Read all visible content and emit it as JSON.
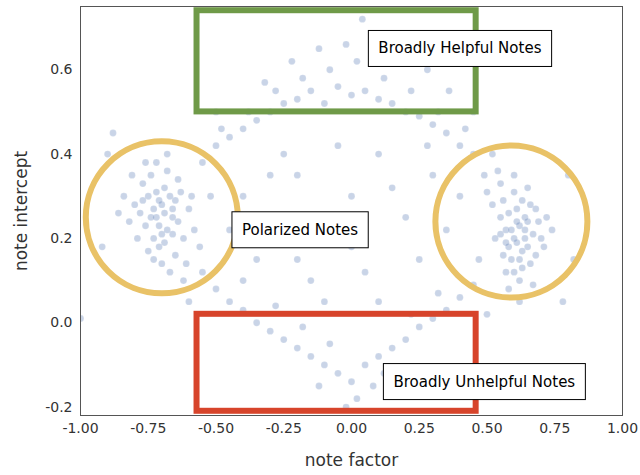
{
  "chart_data": {
    "type": "scatter",
    "color": "#4c72b0",
    "x_label": "note factor",
    "y_label": "note intercept",
    "xlim": [
      -1.0,
      1.0
    ],
    "ylim": [
      -0.22,
      0.75
    ],
    "xticks": [
      {
        "value": -1.0,
        "label": "-1.00"
      },
      -0.75,
      {
        "value": -0.5,
        "label": "-0.50"
      },
      -0.25,
      {
        "value": 0,
        "label": "0.00"
      },
      0.25,
      {
        "value": 0.5,
        "label": "0.50"
      },
      0.75,
      {
        "value": 1.0,
        "label": "1.00"
      }
    ],
    "yticks": [
      -0.2,
      {
        "value": 0,
        "label": "0.0"
      },
      0.2,
      0.4,
      0.6
    ],
    "grid": false,
    "points": [
      [
        -0.72,
        0.25
      ],
      [
        -0.7,
        0.28
      ],
      [
        -0.68,
        0.22
      ],
      [
        -0.75,
        0.3
      ],
      [
        -0.66,
        0.27
      ],
      [
        -0.73,
        0.2
      ],
      [
        -0.78,
        0.26
      ],
      [
        -0.69,
        0.32
      ],
      [
        -0.64,
        0.24
      ],
      [
        -0.71,
        0.18
      ],
      [
        -0.76,
        0.23
      ],
      [
        -0.67,
        0.3
      ],
      [
        -0.8,
        0.28
      ],
      [
        -0.74,
        0.35
      ],
      [
        -0.62,
        0.2
      ],
      [
        -0.7,
        0.14
      ],
      [
        -0.65,
        0.16
      ],
      [
        -0.77,
        0.33
      ],
      [
        -0.82,
        0.24
      ],
      [
        -0.6,
        0.27
      ],
      [
        -0.68,
        0.36
      ],
      [
        -0.73,
        0.27
      ],
      [
        -0.71,
        0.23
      ],
      [
        -0.66,
        0.21
      ],
      [
        -0.79,
        0.2
      ],
      [
        -0.63,
        0.31
      ],
      [
        -0.58,
        0.22
      ],
      [
        -0.84,
        0.3
      ],
      [
        -0.72,
        0.38
      ],
      [
        -0.69,
        0.26
      ],
      [
        -0.75,
        0.17
      ],
      [
        -0.61,
        0.14
      ],
      [
        -0.67,
        0.12
      ],
      [
        -0.74,
        0.25
      ],
      [
        -0.7,
        0.21
      ],
      [
        -0.77,
        0.29
      ],
      [
        -0.64,
        0.34
      ],
      [
        -0.59,
        0.3
      ],
      [
        -0.81,
        0.35
      ],
      [
        -0.68,
        0.4
      ],
      [
        -0.56,
        0.18
      ],
      [
        -0.72,
        0.31
      ],
      [
        -0.65,
        0.29
      ],
      [
        -0.76,
        0.38
      ],
      [
        -0.62,
        0.1
      ],
      [
        -0.69,
        0.19
      ],
      [
        -0.73,
        0.15
      ],
      [
        -0.86,
        0.26
      ],
      [
        -0.66,
        0.25
      ],
      [
        -0.71,
        0.29
      ],
      [
        0.6,
        0.2
      ],
      [
        0.62,
        0.23
      ],
      [
        0.58,
        0.18
      ],
      [
        0.64,
        0.25
      ],
      [
        0.57,
        0.22
      ],
      [
        0.65,
        0.18
      ],
      [
        0.61,
        0.27
      ],
      [
        0.55,
        0.25
      ],
      [
        0.67,
        0.21
      ],
      [
        0.59,
        0.15
      ],
      [
        0.63,
        0.13
      ],
      [
        0.56,
        0.29
      ],
      [
        0.69,
        0.24
      ],
      [
        0.6,
        0.31
      ],
      [
        0.66,
        0.28
      ],
      [
        0.53,
        0.2
      ],
      [
        0.62,
        0.1
      ],
      [
        0.68,
        0.16
      ],
      [
        0.58,
        0.26
      ],
      [
        0.7,
        0.2
      ],
      [
        0.61,
        0.19
      ],
      [
        0.64,
        0.22
      ],
      [
        0.55,
        0.33
      ],
      [
        0.52,
        0.28
      ],
      [
        0.65,
        0.32
      ],
      [
        0.57,
        0.12
      ],
      [
        0.63,
        0.17
      ],
      [
        0.72,
        0.25
      ],
      [
        0.59,
        0.22
      ],
      [
        0.66,
        0.14
      ],
      [
        0.54,
        0.36
      ],
      [
        0.61,
        0.24
      ],
      [
        0.67,
        0.09
      ],
      [
        0.5,
        0.31
      ],
      [
        0.63,
        0.29
      ],
      [
        0.58,
        0.08
      ],
      [
        0.71,
        0.18
      ],
      [
        0.56,
        0.16
      ],
      [
        0.6,
        0.35
      ],
      [
        0.64,
        0.2
      ],
      [
        0.52,
        0.4
      ],
      [
        0.68,
        0.27
      ],
      [
        0.62,
        0.15
      ],
      [
        0.57,
        0.19
      ],
      [
        0.65,
        0.24
      ],
      [
        0.49,
        0.35
      ],
      [
        0.74,
        0.22
      ],
      [
        0.6,
        0.12
      ],
      [
        0.55,
        0.21
      ],
      [
        0.62,
        0.05
      ],
      [
        -0.55,
        0.38
      ],
      [
        -0.5,
        0.42
      ],
      [
        -0.45,
        0.44
      ],
      [
        -0.4,
        0.46
      ],
      [
        -0.35,
        0.48
      ],
      [
        -0.3,
        0.5
      ],
      [
        -0.25,
        0.52
      ],
      [
        -0.2,
        0.53
      ],
      [
        -0.15,
        0.55
      ],
      [
        -0.1,
        0.52
      ],
      [
        -0.05,
        0.56
      ],
      [
        0.0,
        0.54
      ],
      [
        0.05,
        0.55
      ],
      [
        0.1,
        0.53
      ],
      [
        0.15,
        0.52
      ],
      [
        0.2,
        0.5
      ],
      [
        0.25,
        0.49
      ],
      [
        0.3,
        0.47
      ],
      [
        0.35,
        0.45
      ],
      [
        0.4,
        0.42
      ],
      [
        0.45,
        0.4
      ],
      [
        -0.48,
        0.46
      ],
      [
        -0.38,
        0.5
      ],
      [
        -0.28,
        0.55
      ],
      [
        -0.18,
        0.58
      ],
      [
        -0.08,
        0.6
      ],
      [
        0.02,
        0.62
      ],
      [
        0.12,
        0.58
      ],
      [
        0.22,
        0.55
      ],
      [
        0.32,
        0.5
      ],
      [
        0.42,
        0.46
      ],
      [
        -0.22,
        0.62
      ],
      [
        -0.02,
        0.66
      ],
      [
        0.08,
        0.68
      ],
      [
        0.18,
        0.63
      ],
      [
        0.04,
        0.72
      ],
      [
        -0.12,
        0.65
      ],
      [
        0.28,
        0.6
      ],
      [
        -0.32,
        0.57
      ],
      [
        0.36,
        0.55
      ],
      [
        -0.55,
        0.12
      ],
      [
        -0.5,
        0.08
      ],
      [
        -0.45,
        0.05
      ],
      [
        -0.4,
        0.03
      ],
      [
        -0.35,
        0.0
      ],
      [
        -0.3,
        -0.02
      ],
      [
        -0.25,
        -0.04
      ],
      [
        -0.2,
        -0.06
      ],
      [
        -0.15,
        -0.08
      ],
      [
        -0.1,
        -0.1
      ],
      [
        -0.05,
        -0.12
      ],
      [
        0.0,
        -0.14
      ],
      [
        0.05,
        -0.1
      ],
      [
        0.1,
        -0.08
      ],
      [
        0.15,
        -0.06
      ],
      [
        0.2,
        -0.04
      ],
      [
        0.25,
        -0.01
      ],
      [
        0.3,
        0.01
      ],
      [
        0.35,
        0.03
      ],
      [
        0.4,
        0.06
      ],
      [
        0.45,
        0.09
      ],
      [
        -0.28,
        0.04
      ],
      [
        -0.18,
        -0.01
      ],
      [
        -0.08,
        -0.05
      ],
      [
        0.02,
        -0.18
      ],
      [
        0.08,
        -0.15
      ],
      [
        -0.02,
        -0.2
      ],
      [
        0.12,
        -0.12
      ],
      [
        -0.12,
        -0.15
      ],
      [
        0.22,
        0.02
      ],
      [
        -0.4,
        0.1
      ],
      [
        0.32,
        0.07
      ],
      [
        -0.6,
        0.05
      ],
      [
        0.5,
        0.02
      ],
      [
        -1.0,
        0.01
      ],
      [
        0.18,
        -0.14
      ],
      [
        -0.4,
        0.3
      ],
      [
        -0.3,
        0.25
      ],
      [
        -0.2,
        0.35
      ],
      [
        -0.1,
        0.2
      ],
      [
        0.0,
        0.3
      ],
      [
        0.1,
        0.4
      ],
      [
        0.2,
        0.25
      ],
      [
        0.3,
        0.35
      ],
      [
        -0.35,
        0.15
      ],
      [
        -0.15,
        0.1
      ],
      [
        0.05,
        0.12
      ],
      [
        0.25,
        0.15
      ],
      [
        -0.25,
        0.4
      ],
      [
        0.15,
        0.32
      ],
      [
        -0.05,
        0.42
      ],
      [
        0.35,
        0.22
      ],
      [
        -0.45,
        0.22
      ],
      [
        0.4,
        0.3
      ],
      [
        -0.1,
        0.05
      ],
      [
        0.1,
        0.05
      ],
      [
        0.0,
        0.18
      ],
      [
        -0.3,
        0.35
      ],
      [
        0.28,
        0.42
      ],
      [
        -0.2,
        0.15
      ],
      [
        -0.9,
        0.4
      ],
      [
        -0.92,
        0.18
      ],
      [
        -0.88,
        0.45
      ],
      [
        0.8,
        0.35
      ],
      [
        0.82,
        0.15
      ],
      [
        0.78,
        0.05
      ],
      [
        0.45,
        0.5
      ],
      [
        -0.5,
        0.5
      ],
      [
        0.47,
        0.15
      ],
      [
        -0.52,
        0.3
      ]
    ],
    "boxes": [
      {
        "color": "#6f9a48",
        "x": [
          -0.57,
          0.46
        ],
        "y": [
          0.5,
          0.74
        ]
      },
      {
        "color": "#d7442b",
        "x": [
          -0.57,
          0.46
        ],
        "y": [
          -0.21,
          0.02
        ]
      }
    ],
    "circles": [
      {
        "color": "#e9c267",
        "x": -0.7,
        "y": 0.25
      },
      {
        "color": "#e9c267",
        "x": 0.59,
        "y": 0.24
      }
    ],
    "annotations": [
      {
        "text": "Broadly Helpful Notes",
        "x": 0.4,
        "y": 0.65
      },
      {
        "text": "Polarized Notes",
        "x": -0.19,
        "y": 0.22
      },
      {
        "text": "Broadly Unhelpful Notes",
        "x": 0.49,
        "y": -0.14
      }
    ]
  }
}
